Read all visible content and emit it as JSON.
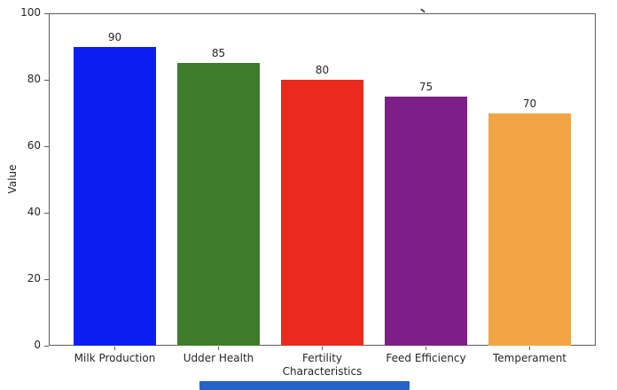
{
  "chart_data": {
    "type": "bar",
    "title": "",
    "title_note": "title cropped off at top edge; only a small descender mark of a letter is visible",
    "categories": [
      "Milk Production",
      "Udder Health",
      "Fertility",
      "Feed Efficiency",
      "Temperament"
    ],
    "values": [
      90,
      85,
      80,
      75,
      70
    ],
    "value_labels": [
      "90",
      "85",
      "80",
      "75",
      "70"
    ],
    "bar_colors": [
      "#0a1ff0",
      "#3d7d2b",
      "#e92a1d",
      "#7c1f86",
      "#f2a444"
    ],
    "xlabel": "Characteristics",
    "ylabel": "Value",
    "ylim": [
      0,
      100
    ],
    "yticks": [
      0,
      20,
      40,
      60,
      80,
      100
    ],
    "ytick_labels": [
      "0",
      "20",
      "40",
      "60",
      "80",
      "100"
    ],
    "grid": false,
    "legend": "none",
    "text_color": "#262626",
    "spine_color": "#5c5c5c",
    "background_color": "#ffffff"
  },
  "window": {
    "bottom_bar_color": "#2463c8"
  }
}
